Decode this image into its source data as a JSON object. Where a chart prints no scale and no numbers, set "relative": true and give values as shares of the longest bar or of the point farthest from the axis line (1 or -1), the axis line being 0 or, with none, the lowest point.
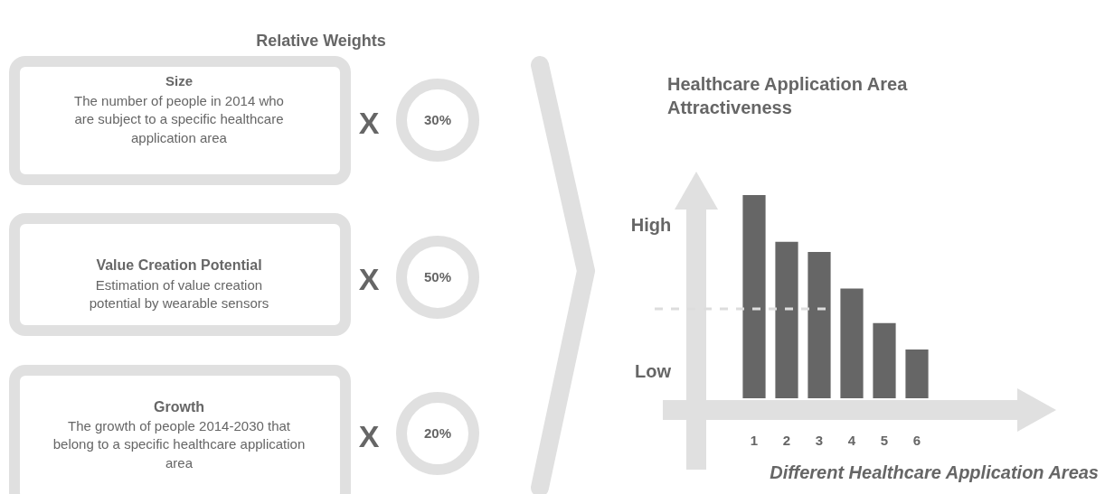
{
  "chart_data": {
    "type": "bar",
    "relative": true,
    "title": "Healthcare Application Area Attractiveness",
    "xlabel": "Different Healthcare Application Areas",
    "categories": [
      "1",
      "2",
      "3",
      "4",
      "5",
      "6"
    ],
    "values": [
      1,
      0.77,
      0.72,
      0.54,
      0.37,
      0.24
    ],
    "color": "#666666",
    "ref_lines": [
      {
        "axis": "y",
        "value": 0.44,
        "color": "#dddddd",
        "line_style": "dashed"
      }
    ],
    "annotations": [
      "Relative Weights",
      "Size",
      "The number of people in 2014 who are subject to a specific healthcare application area",
      "X",
      "30%",
      "Value Creation Potential",
      "Estimation of value creation potential by wearable sensors",
      "X",
      "50%",
      "Growth",
      "The growth of people 2014-2030 that belong to a specific healthcare application area",
      "X",
      "20%",
      "High",
      "Low"
    ]
  }
}
